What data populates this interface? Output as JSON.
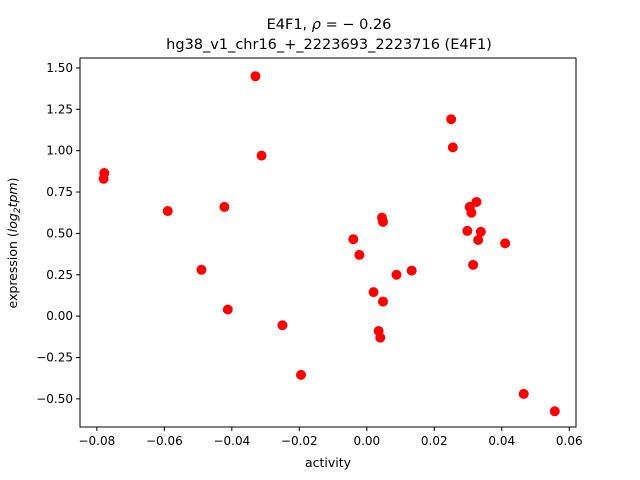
{
  "chart_data": {
    "type": "scatter",
    "title_prefix": "E4F1, ",
    "title_rho_symbol": "ρ",
    "title_rho_eq": " = − 0.26",
    "subtitle": "hg38_v1_chr16_+_2223693_2223716 (E4F1)",
    "xlabel": "activity",
    "ylabel_prefix": "expression (",
    "ylabel_log": "log",
    "ylabel_sub": "2",
    "ylabel_tpm": "tpm",
    "ylabel_suffix": ")",
    "xlim": [
      -0.085,
      0.062
    ],
    "ylim": [
      -0.67,
      1.56
    ],
    "xticks": [
      -0.08,
      -0.06,
      -0.04,
      -0.02,
      0.0,
      0.02,
      0.04,
      0.06
    ],
    "xtick_labels": [
      "−0.08",
      "−0.06",
      "−0.04",
      "−0.02",
      "0.00",
      "0.02",
      "0.04",
      "0.06"
    ],
    "yticks": [
      -0.5,
      -0.25,
      0.0,
      0.25,
      0.5,
      0.75,
      1.0,
      1.25,
      1.5
    ],
    "ytick_labels": [
      "−0.50",
      "−0.25",
      "0.00",
      "0.25",
      "0.50",
      "0.75",
      "1.00",
      "1.25",
      "1.50"
    ],
    "grid": false,
    "marker_color": "#ff0000",
    "points": [
      {
        "x": -0.0778,
        "y": 0.865
      },
      {
        "x": -0.078,
        "y": 0.83
      },
      {
        "x": -0.059,
        "y": 0.635
      },
      {
        "x": -0.049,
        "y": 0.28
      },
      {
        "x": -0.0422,
        "y": 0.66
      },
      {
        "x": -0.0412,
        "y": 0.04
      },
      {
        "x": -0.033,
        "y": 1.45
      },
      {
        "x": -0.0312,
        "y": 0.97
      },
      {
        "x": -0.025,
        "y": -0.055
      },
      {
        "x": -0.0195,
        "y": -0.355
      },
      {
        "x": -0.004,
        "y": 0.465
      },
      {
        "x": -0.0022,
        "y": 0.37
      },
      {
        "x": 0.002,
        "y": 0.145
      },
      {
        "x": 0.0035,
        "y": -0.09
      },
      {
        "x": 0.004,
        "y": -0.13
      },
      {
        "x": 0.0045,
        "y": 0.595
      },
      {
        "x": 0.0048,
        "y": 0.57
      },
      {
        "x": 0.0048,
        "y": 0.088
      },
      {
        "x": 0.0088,
        "y": 0.25
      },
      {
        "x": 0.0133,
        "y": 0.275
      },
      {
        "x": 0.025,
        "y": 1.19
      },
      {
        "x": 0.0255,
        "y": 1.02
      },
      {
        "x": 0.0298,
        "y": 0.515
      },
      {
        "x": 0.0305,
        "y": 0.66
      },
      {
        "x": 0.031,
        "y": 0.625
      },
      {
        "x": 0.0315,
        "y": 0.31
      },
      {
        "x": 0.0325,
        "y": 0.69
      },
      {
        "x": 0.033,
        "y": 0.46
      },
      {
        "x": 0.0338,
        "y": 0.51
      },
      {
        "x": 0.041,
        "y": 0.44
      },
      {
        "x": 0.0465,
        "y": -0.47
      },
      {
        "x": 0.0557,
        "y": -0.575
      }
    ]
  }
}
